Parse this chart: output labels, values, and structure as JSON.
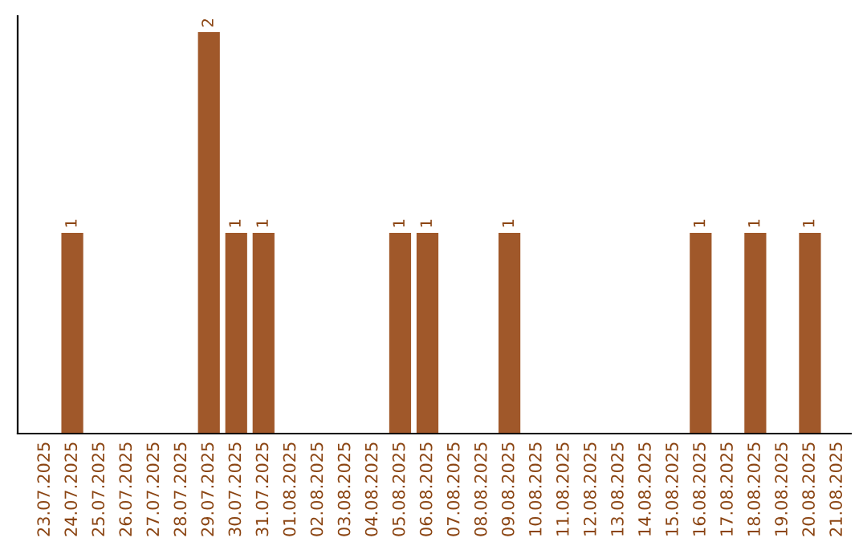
{
  "chart_data": {
    "type": "bar",
    "categories": [
      "23.07.2025",
      "24.07.2025",
      "25.07.2025",
      "26.07.2025",
      "27.07.2025",
      "28.07.2025",
      "29.07.2025",
      "30.07.2025",
      "31.07.2025",
      "01.08.2025",
      "02.08.2025",
      "03.08.2025",
      "04.08.2025",
      "05.08.2025",
      "06.08.2025",
      "07.08.2025",
      "08.08.2025",
      "09.08.2025",
      "10.08.2025",
      "11.08.2025",
      "12.08.2025",
      "13.08.2025",
      "14.08.2025",
      "15.08.2025",
      "16.08.2025",
      "17.08.2025",
      "18.08.2025",
      "19.08.2025",
      "20.08.2025",
      "21.08.2025"
    ],
    "values": [
      0,
      1,
      0,
      0,
      0,
      0,
      2,
      1,
      1,
      0,
      0,
      0,
      0,
      1,
      1,
      0,
      0,
      1,
      0,
      0,
      0,
      0,
      0,
      0,
      1,
      0,
      1,
      0,
      1,
      0
    ],
    "value_labels": [
      null,
      "1",
      null,
      null,
      null,
      null,
      "2",
      "1",
      "1",
      null,
      null,
      null,
      null,
      "1",
      "1",
      null,
      null,
      "1",
      null,
      null,
      null,
      null,
      null,
      null,
      "1",
      null,
      "1",
      null,
      "1",
      null
    ],
    "color": "#a0582a",
    "tick_labels": "x",
    "grid": false,
    "legend": false
  }
}
